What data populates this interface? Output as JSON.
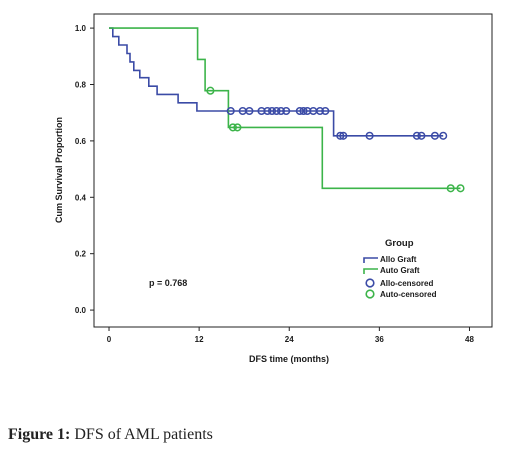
{
  "caption": {
    "label": "Figure 1:",
    "text": "DFS of AML patients"
  },
  "chart_data": {
    "type": "line",
    "step": true,
    "title": "",
    "xlabel": "DFS time (months)",
    "ylabel": "Cum Survival Proportion",
    "xlim": [
      -2,
      51
    ],
    "ylim": [
      -0.06,
      1.05
    ],
    "xticks": [
      0,
      12,
      24,
      36,
      48
    ],
    "yticks": [
      0.0,
      0.2,
      0.4,
      0.6,
      0.8,
      1.0
    ],
    "grid": false,
    "legend_placement": "bottom-right",
    "legend_title": "Group",
    "annotation": "p = 0.768",
    "series": [
      {
        "name": "Allo Graft",
        "color": "#3b4ba6",
        "x": [
          0,
          0.5,
          1.3,
          2.4,
          2.8,
          3.3,
          4.1,
          5.3,
          6.4,
          9.2,
          11.7,
          15.5,
          29.9,
          30.3,
          44.5
        ],
        "y": [
          1.0,
          0.97,
          0.94,
          0.91,
          0.88,
          0.85,
          0.824,
          0.794,
          0.765,
          0.735,
          0.706,
          0.706,
          0.618,
          0.618,
          0.618
        ]
      },
      {
        "name": "Auto Graft",
        "color": "#3cb44a",
        "x": [
          0,
          11.8,
          12.8,
          15.9,
          28.4,
          46.8
        ],
        "y": [
          1.0,
          0.889,
          0.778,
          0.648,
          0.432,
          0.432
        ]
      }
    ],
    "censored": [
      {
        "name": "Allo-censored",
        "color": "#3b4ba6",
        "points": [
          [
            16.2,
            0.706
          ],
          [
            17.8,
            0.706
          ],
          [
            18.7,
            0.706
          ],
          [
            20.3,
            0.706
          ],
          [
            21.1,
            0.706
          ],
          [
            21.7,
            0.706
          ],
          [
            22.3,
            0.706
          ],
          [
            22.9,
            0.706
          ],
          [
            23.6,
            0.706
          ],
          [
            25.4,
            0.706
          ],
          [
            25.9,
            0.706
          ],
          [
            26.4,
            0.706
          ],
          [
            27.2,
            0.706
          ],
          [
            28.1,
            0.706
          ],
          [
            28.8,
            0.706
          ],
          [
            30.8,
            0.618
          ],
          [
            31.2,
            0.618
          ],
          [
            34.7,
            0.618
          ],
          [
            41.0,
            0.618
          ],
          [
            41.6,
            0.618
          ],
          [
            43.4,
            0.618
          ],
          [
            44.5,
            0.618
          ]
        ]
      },
      {
        "name": "Auto-censored",
        "color": "#3cb44a",
        "points": [
          [
            13.5,
            0.778
          ],
          [
            16.5,
            0.648
          ],
          [
            17.1,
            0.648
          ],
          [
            45.5,
            0.432
          ],
          [
            46.8,
            0.432
          ]
        ]
      }
    ]
  }
}
